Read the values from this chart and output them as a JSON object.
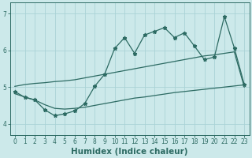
{
  "title": "",
  "xlabel": "Humidex (Indice chaleur)",
  "xlim": [
    -0.5,
    23.5
  ],
  "ylim": [
    3.7,
    7.3
  ],
  "yticks": [
    4,
    5,
    6,
    7
  ],
  "xtick_vals": [
    0,
    1,
    2,
    3,
    4,
    5,
    6,
    7,
    8,
    9,
    10,
    11,
    12,
    13,
    14,
    15,
    16,
    17,
    18,
    19,
    20,
    21,
    22,
    23
  ],
  "bg_color": "#cce9ea",
  "grid_color": "#aad3d6",
  "line_color": "#2d6b63",
  "main_y": [
    4.88,
    4.72,
    4.65,
    4.38,
    4.22,
    4.27,
    4.35,
    4.55,
    5.02,
    5.35,
    6.05,
    6.35,
    5.92,
    6.42,
    6.52,
    6.62,
    6.35,
    6.48,
    6.12,
    5.75,
    5.82,
    6.92,
    6.07,
    5.07
  ],
  "upper_y": [
    5.02,
    5.07,
    5.1,
    5.12,
    5.15,
    5.17,
    5.2,
    5.25,
    5.3,
    5.35,
    5.4,
    5.45,
    5.5,
    5.55,
    5.6,
    5.65,
    5.7,
    5.75,
    5.8,
    5.85,
    5.88,
    5.92,
    5.96,
    5.0
  ],
  "lower_y": [
    4.82,
    4.73,
    4.65,
    4.52,
    4.42,
    4.4,
    4.42,
    4.45,
    4.5,
    4.55,
    4.6,
    4.65,
    4.7,
    4.73,
    4.77,
    4.81,
    4.85,
    4.88,
    4.91,
    4.94,
    4.97,
    5.0,
    5.03,
    5.06
  ],
  "markersize": 3.5,
  "linewidth": 0.9,
  "tick_fontsize": 5.5,
  "xlabel_fontsize": 7.5
}
